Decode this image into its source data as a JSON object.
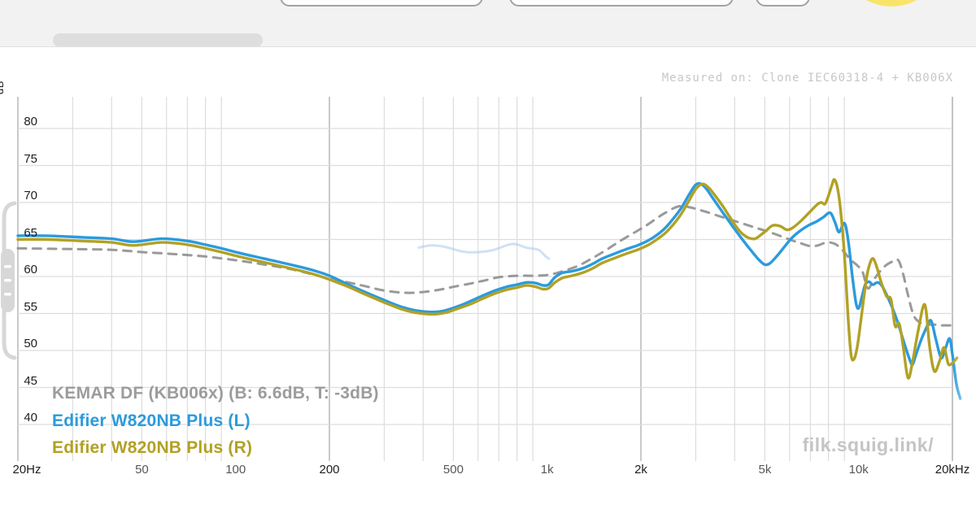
{
  "top_bar": {
    "background_color": "#F2F2F2",
    "toolbar_buttons": [
      "toolbar-button-left",
      "toolbar-button-middle",
      "toolbar-button-small"
    ],
    "avatar_color": "#F8E469",
    "tab_pill_color": "#DEDEDE"
  },
  "chart": {
    "axis_title": "dB",
    "measured_on": "Measured on: Clone IEC60318-4 + KB006X",
    "watermark": "filk.squig.link/",
    "y_ticks": [
      80,
      75,
      70,
      65,
      60,
      55,
      50,
      45,
      40
    ],
    "x_ticks": [
      {
        "label": "20Hz",
        "f": 20,
        "major": true
      },
      {
        "label": "50",
        "f": 50,
        "major": false
      },
      {
        "label": "100",
        "f": 100,
        "major": false
      },
      {
        "label": "200",
        "f": 200,
        "major": true
      },
      {
        "label": "500",
        "f": 500,
        "major": false
      },
      {
        "label": "1k",
        "f": 1000,
        "major": false
      },
      {
        "label": "2k",
        "f": 2000,
        "major": true
      },
      {
        "label": "5k",
        "f": 5000,
        "major": false
      },
      {
        "label": "10k",
        "f": 10000,
        "major": false
      },
      {
        "label": "20kHz",
        "f": 20000,
        "major": true
      }
    ],
    "colors": {
      "grid_minor": "#DDDDDD",
      "grid_major": "#BDBDBD",
      "target_gray": "#8F8F8F",
      "left_blue": "#2B9BDC",
      "right_olive": "#B2A125",
      "faded_trace": "#A9C9EC"
    }
  },
  "chart_data": {
    "type": "line",
    "title": "",
    "xlabel": "",
    "ylabel": "dB",
    "x_scale": "log",
    "xlim": [
      20,
      20000
    ],
    "ylim": [
      36,
      84
    ],
    "grid": true,
    "legend_position": "bottom-left",
    "series": [
      {
        "name": "unlabeled-faded-trace",
        "color": "#A9C9EC",
        "style": "solid",
        "width": 3,
        "opacity": 0.55,
        "legend": false,
        "points": [
          [
            387,
            63.9
          ],
          [
            425,
            64.2
          ],
          [
            470,
            64.0
          ],
          [
            550,
            63.3
          ],
          [
            660,
            63.5
          ],
          [
            772,
            64.4
          ],
          [
            855,
            63.9
          ],
          [
            937,
            63.6
          ],
          [
            990,
            62.7
          ],
          [
            1012,
            62.4
          ]
        ]
      },
      {
        "name": "KEMAR DF (KB006x) (B: 6.6dB, T: -3dB)",
        "color": "#8F8F8F",
        "style": "dashed",
        "width": 3,
        "opacity": 0.9,
        "legend": true,
        "points": [
          [
            20,
            63.8
          ],
          [
            30,
            63.7
          ],
          [
            40,
            63.6
          ],
          [
            50,
            63.3
          ],
          [
            60,
            63.1
          ],
          [
            70,
            62.9
          ],
          [
            80,
            62.7
          ],
          [
            100,
            62.2
          ],
          [
            120,
            61.7
          ],
          [
            150,
            61.0
          ],
          [
            180,
            60.2
          ],
          [
            200,
            59.7
          ],
          [
            230,
            59.2
          ],
          [
            260,
            58.7
          ],
          [
            300,
            58.1
          ],
          [
            350,
            57.8
          ],
          [
            400,
            57.9
          ],
          [
            450,
            58.2
          ],
          [
            500,
            58.6
          ],
          [
            560,
            59.0
          ],
          [
            620,
            59.4
          ],
          [
            700,
            59.9
          ],
          [
            800,
            60.1
          ],
          [
            900,
            60.1
          ],
          [
            1000,
            60.2
          ],
          [
            1100,
            60.6
          ],
          [
            1250,
            61.4
          ],
          [
            1400,
            62.5
          ],
          [
            1550,
            63.6
          ],
          [
            1700,
            64.7
          ],
          [
            1900,
            65.9
          ],
          [
            2100,
            67.0
          ],
          [
            2350,
            68.4
          ],
          [
            2650,
            69.5
          ],
          [
            2900,
            69.3
          ],
          [
            3200,
            68.8
          ],
          [
            3600,
            68.1
          ],
          [
            4000,
            67.5
          ],
          [
            4500,
            66.8
          ],
          [
            5000,
            66.2
          ],
          [
            5500,
            65.6
          ],
          [
            6000,
            65.0
          ],
          [
            6500,
            64.5
          ],
          [
            7000,
            64.1
          ],
          [
            7400,
            64.2
          ],
          [
            7900,
            64.6
          ],
          [
            8400,
            64.4
          ],
          [
            8900,
            63.5
          ],
          [
            9400,
            62.3
          ],
          [
            9900,
            61.5
          ],
          [
            10300,
            60.6
          ],
          [
            10700,
            58.4
          ],
          [
            11200,
            59.6
          ],
          [
            12000,
            61.2
          ],
          [
            12800,
            62.0
          ],
          [
            13400,
            62.2
          ],
          [
            13900,
            60.3
          ],
          [
            14400,
            57.5
          ],
          [
            15000,
            54.8
          ],
          [
            15700,
            53.8
          ],
          [
            16500,
            53.5
          ],
          [
            17500,
            53.5
          ],
          [
            18500,
            53.4
          ],
          [
            19500,
            53.4
          ],
          [
            20500,
            53.4
          ]
        ]
      },
      {
        "name": "Edifier W820NB Plus (L)",
        "color": "#2B9BDC",
        "style": "solid",
        "width": 3.4,
        "opacity": 1,
        "legend": true,
        "points": [
          [
            20,
            65.5
          ],
          [
            25,
            65.5
          ],
          [
            32,
            65.3
          ],
          [
            40,
            65.1
          ],
          [
            47,
            64.7
          ],
          [
            58,
            65.1
          ],
          [
            70,
            64.8
          ],
          [
            80,
            64.3
          ],
          [
            90,
            63.8
          ],
          [
            100,
            63.3
          ],
          [
            115,
            62.7
          ],
          [
            130,
            62.2
          ],
          [
            150,
            61.6
          ],
          [
            175,
            60.9
          ],
          [
            200,
            60.1
          ],
          [
            230,
            58.9
          ],
          [
            260,
            57.9
          ],
          [
            300,
            56.8
          ],
          [
            340,
            55.9
          ],
          [
            380,
            55.4
          ],
          [
            430,
            55.2
          ],
          [
            470,
            55.4
          ],
          [
            520,
            56.0
          ],
          [
            570,
            56.7
          ],
          [
            620,
            57.4
          ],
          [
            680,
            58.1
          ],
          [
            740,
            58.6
          ],
          [
            800,
            58.9
          ],
          [
            860,
            59.2
          ],
          [
            920,
            59.1
          ],
          [
            970,
            58.8
          ],
          [
            1010,
            58.9
          ],
          [
            1060,
            59.9
          ],
          [
            1120,
            60.5
          ],
          [
            1200,
            60.7
          ],
          [
            1300,
            61.1
          ],
          [
            1400,
            61.7
          ],
          [
            1500,
            62.4
          ],
          [
            1650,
            63.1
          ],
          [
            1800,
            63.7
          ],
          [
            1950,
            64.2
          ],
          [
            2100,
            64.8
          ],
          [
            2250,
            65.6
          ],
          [
            2400,
            66.6
          ],
          [
            2550,
            67.9
          ],
          [
            2700,
            69.3
          ],
          [
            2850,
            71.0
          ],
          [
            3000,
            72.4
          ],
          [
            3120,
            72.5
          ],
          [
            3250,
            71.8
          ],
          [
            3400,
            70.6
          ],
          [
            3600,
            69.1
          ],
          [
            3800,
            67.7
          ],
          [
            4000,
            66.4
          ],
          [
            4200,
            65.2
          ],
          [
            4400,
            64.1
          ],
          [
            4600,
            63.1
          ],
          [
            4800,
            62.2
          ],
          [
            5000,
            61.6
          ],
          [
            5200,
            61.8
          ],
          [
            5500,
            62.9
          ],
          [
            5800,
            64.1
          ],
          [
            6100,
            65.2
          ],
          [
            6500,
            66.2
          ],
          [
            6900,
            66.9
          ],
          [
            7300,
            67.4
          ],
          [
            7700,
            68.0
          ],
          [
            8100,
            68.6
          ],
          [
            8400,
            67.3
          ],
          [
            8650,
            66.0
          ],
          [
            9000,
            67.2
          ],
          [
            9250,
            65.0
          ],
          [
            9550,
            60.0
          ],
          [
            9800,
            56.5
          ],
          [
            10000,
            55.7
          ],
          [
            10250,
            57.3
          ],
          [
            10500,
            58.9
          ],
          [
            10800,
            59.3
          ],
          [
            11100,
            58.9
          ],
          [
            11500,
            59.2
          ],
          [
            11900,
            58.7
          ],
          [
            12400,
            57.2
          ],
          [
            12900,
            55.5
          ],
          [
            13400,
            53.6
          ],
          [
            14000,
            51.0
          ],
          [
            14600,
            48.7
          ],
          [
            14900,
            48.1
          ],
          [
            15300,
            49.5
          ],
          [
            15900,
            51.5
          ],
          [
            16600,
            53.3
          ],
          [
            17100,
            54.0
          ],
          [
            17700,
            51.5
          ],
          [
            18400,
            49.0
          ],
          [
            19000,
            50.3
          ],
          [
            19600,
            51.6
          ],
          [
            20000,
            49.5
          ],
          [
            20600,
            45.5
          ],
          [
            21200,
            43.5
          ]
        ]
      },
      {
        "name": "Edifier W820NB Plus (R)",
        "color": "#B2A125",
        "style": "solid",
        "width": 3.4,
        "opacity": 1,
        "legend": true,
        "points": [
          [
            20,
            65.0
          ],
          [
            25,
            65.0
          ],
          [
            32,
            64.8
          ],
          [
            40,
            64.6
          ],
          [
            47,
            64.2
          ],
          [
            58,
            64.6
          ],
          [
            70,
            64.3
          ],
          [
            80,
            63.8
          ],
          [
            90,
            63.3
          ],
          [
            100,
            62.8
          ],
          [
            115,
            62.2
          ],
          [
            130,
            61.7
          ],
          [
            150,
            61.1
          ],
          [
            175,
            60.4
          ],
          [
            200,
            59.6
          ],
          [
            230,
            58.6
          ],
          [
            260,
            57.6
          ],
          [
            300,
            56.5
          ],
          [
            340,
            55.6
          ],
          [
            380,
            55.1
          ],
          [
            430,
            54.9
          ],
          [
            470,
            55.1
          ],
          [
            520,
            55.7
          ],
          [
            570,
            56.3
          ],
          [
            620,
            57.0
          ],
          [
            680,
            57.7
          ],
          [
            740,
            58.2
          ],
          [
            800,
            58.5
          ],
          [
            860,
            58.8
          ],
          [
            920,
            58.6
          ],
          [
            970,
            58.3
          ],
          [
            1010,
            58.4
          ],
          [
            1060,
            59.2
          ],
          [
            1120,
            59.8
          ],
          [
            1200,
            60.1
          ],
          [
            1300,
            60.5
          ],
          [
            1400,
            61.1
          ],
          [
            1500,
            61.8
          ],
          [
            1650,
            62.5
          ],
          [
            1800,
            63.1
          ],
          [
            1950,
            63.6
          ],
          [
            2100,
            64.2
          ],
          [
            2250,
            65.0
          ],
          [
            2400,
            65.9
          ],
          [
            2550,
            67.1
          ],
          [
            2700,
            68.5
          ],
          [
            2850,
            70.2
          ],
          [
            3000,
            71.8
          ],
          [
            3150,
            72.5
          ],
          [
            3300,
            72.0
          ],
          [
            3450,
            71.0
          ],
          [
            3650,
            69.6
          ],
          [
            3850,
            68.1
          ],
          [
            4050,
            66.7
          ],
          [
            4250,
            65.7
          ],
          [
            4450,
            65.2
          ],
          [
            4650,
            65.1
          ],
          [
            4850,
            65.6
          ],
          [
            5050,
            66.2
          ],
          [
            5300,
            66.9
          ],
          [
            5600,
            66.8
          ],
          [
            5900,
            66.3
          ],
          [
            6200,
            66.7
          ],
          [
            6600,
            67.7
          ],
          [
            7000,
            68.8
          ],
          [
            7400,
            69.8
          ],
          [
            7600,
            70.0
          ],
          [
            7800,
            69.8
          ],
          [
            8000,
            70.9
          ],
          [
            8200,
            72.3
          ],
          [
            8350,
            73.1
          ],
          [
            8550,
            72.0
          ],
          [
            8750,
            69.0
          ],
          [
            9000,
            63.0
          ],
          [
            9250,
            54.5
          ],
          [
            9450,
            49.5
          ],
          [
            9650,
            48.8
          ],
          [
            9900,
            50.5
          ],
          [
            10200,
            54.5
          ],
          [
            10600,
            59.8
          ],
          [
            10900,
            61.9
          ],
          [
            11150,
            62.4
          ],
          [
            11450,
            61.2
          ],
          [
            11800,
            59.3
          ],
          [
            12300,
            57.3
          ],
          [
            12700,
            56.9
          ],
          [
            13100,
            53.3
          ],
          [
            13500,
            53.6
          ],
          [
            13900,
            50.5
          ],
          [
            14400,
            46.3
          ],
          [
            14900,
            48.5
          ],
          [
            15500,
            52.5
          ],
          [
            16300,
            56.2
          ],
          [
            16900,
            50.5
          ],
          [
            17500,
            47.2
          ],
          [
            18200,
            48.6
          ],
          [
            18800,
            50.4
          ],
          [
            19400,
            48.2
          ],
          [
            20000,
            48.3
          ],
          [
            20700,
            49.0
          ]
        ]
      }
    ]
  }
}
